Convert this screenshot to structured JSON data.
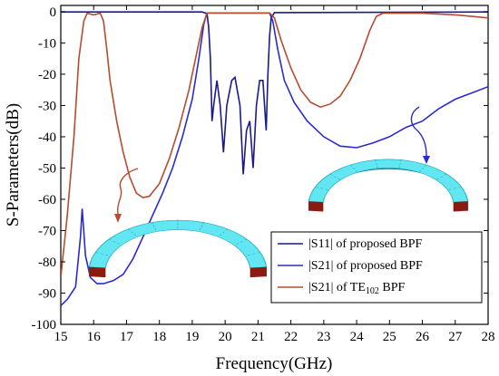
{
  "chart_data": {
    "type": "line",
    "title": "",
    "xlabel": "Frequency(GHz)",
    "ylabel": "S-Parameters(dB)",
    "xlim": [
      15,
      28
    ],
    "ylim": [
      -100,
      2
    ],
    "xticks": [
      15,
      16,
      17,
      18,
      19,
      20,
      21,
      22,
      23,
      24,
      25,
      26,
      27,
      28
    ],
    "yticks": [
      0,
      -10,
      -20,
      -30,
      -40,
      -50,
      -60,
      -70,
      -80,
      -90,
      -100
    ],
    "grid": false,
    "legend_position": "bottom-right",
    "series": [
      {
        "name": "|S11| of proposed BPF",
        "color": "#1a1a8c",
        "points": [
          [
            15.0,
            -0.1
          ],
          [
            19.3,
            -0.1
          ],
          [
            19.45,
            -0.6
          ],
          [
            19.5,
            -5
          ],
          [
            19.55,
            -15
          ],
          [
            19.6,
            -35
          ],
          [
            19.65,
            -30
          ],
          [
            19.75,
            -22
          ],
          [
            19.85,
            -30
          ],
          [
            19.95,
            -45
          ],
          [
            20.05,
            -30
          ],
          [
            20.2,
            -22
          ],
          [
            20.3,
            -21
          ],
          [
            20.45,
            -30
          ],
          [
            20.55,
            -52
          ],
          [
            20.65,
            -38
          ],
          [
            20.75,
            -35
          ],
          [
            20.85,
            -50
          ],
          [
            20.95,
            -30
          ],
          [
            21.05,
            -22
          ],
          [
            21.15,
            -22
          ],
          [
            21.25,
            -38
          ],
          [
            21.3,
            -20
          ],
          [
            21.35,
            -8
          ],
          [
            21.4,
            -2
          ],
          [
            21.5,
            -0.3
          ],
          [
            28.0,
            -0.1
          ]
        ]
      },
      {
        "name": "|S21| of proposed BPF",
        "color": "#2a2ad0",
        "points": [
          [
            15.0,
            -94
          ],
          [
            15.2,
            -92
          ],
          [
            15.45,
            -88
          ],
          [
            15.6,
            -72
          ],
          [
            15.65,
            -63
          ],
          [
            15.75,
            -78
          ],
          [
            15.9,
            -85
          ],
          [
            16.1,
            -87
          ],
          [
            16.3,
            -87
          ],
          [
            16.6,
            -86
          ],
          [
            16.9,
            -84
          ],
          [
            17.2,
            -79
          ],
          [
            17.5,
            -72
          ],
          [
            17.8,
            -65
          ],
          [
            18.1,
            -58
          ],
          [
            18.4,
            -50
          ],
          [
            18.7,
            -40
          ],
          [
            19.0,
            -28
          ],
          [
            19.2,
            -15
          ],
          [
            19.35,
            -4
          ],
          [
            19.45,
            -0.4
          ],
          [
            21.35,
            -0.4
          ],
          [
            21.45,
            -3
          ],
          [
            21.6,
            -12
          ],
          [
            21.8,
            -22
          ],
          [
            22.1,
            -29
          ],
          [
            22.5,
            -35
          ],
          [
            23.0,
            -40
          ],
          [
            23.5,
            -43
          ],
          [
            24.0,
            -43.5
          ],
          [
            24.5,
            -42
          ],
          [
            25.0,
            -40
          ],
          [
            25.5,
            -37
          ],
          [
            26.0,
            -35
          ],
          [
            26.5,
            -31
          ],
          [
            27.0,
            -28
          ],
          [
            27.5,
            -26
          ],
          [
            28.0,
            -24
          ]
        ]
      },
      {
        "name": "|S21| of TE102 BPF",
        "color": "#b84a30",
        "points": [
          [
            15.0,
            -85
          ],
          [
            15.2,
            -65
          ],
          [
            15.4,
            -40
          ],
          [
            15.55,
            -15
          ],
          [
            15.7,
            -3
          ],
          [
            15.8,
            -0.5
          ],
          [
            16.0,
            -1
          ],
          [
            16.2,
            -0.5
          ],
          [
            16.3,
            -3
          ],
          [
            16.4,
            -12
          ],
          [
            16.5,
            -22
          ],
          [
            16.7,
            -35
          ],
          [
            16.9,
            -45
          ],
          [
            17.1,
            -53
          ],
          [
            17.3,
            -58
          ],
          [
            17.5,
            -59.5
          ],
          [
            17.7,
            -59
          ],
          [
            18.0,
            -55
          ],
          [
            18.3,
            -47
          ],
          [
            18.6,
            -37
          ],
          [
            18.9,
            -25
          ],
          [
            19.1,
            -15
          ],
          [
            19.3,
            -5
          ],
          [
            19.45,
            -0.4
          ],
          [
            21.35,
            -0.4
          ],
          [
            21.5,
            -2
          ],
          [
            21.7,
            -9
          ],
          [
            22.0,
            -18
          ],
          [
            22.3,
            -25
          ],
          [
            22.6,
            -29
          ],
          [
            22.9,
            -30.5
          ],
          [
            23.2,
            -29.5
          ],
          [
            23.5,
            -27
          ],
          [
            23.8,
            -22
          ],
          [
            24.1,
            -15
          ],
          [
            24.4,
            -6
          ],
          [
            24.6,
            -1.5
          ],
          [
            24.8,
            -0.5
          ],
          [
            26.0,
            -0.5
          ],
          [
            27.0,
            -1
          ],
          [
            27.5,
            -1.5
          ],
          [
            28.0,
            -2
          ]
        ]
      }
    ],
    "legend_entries": [
      {
        "text": "|S11| of proposed BPF",
        "color": "#1a1a8c"
      },
      {
        "text": "|S21| of proposed BPF",
        "color": "#2a2ad0"
      },
      {
        "text_main": "|S21| of TE",
        "text_sub": "102",
        "text_tail": " BPF",
        "color": "#b84a30"
      }
    ]
  }
}
